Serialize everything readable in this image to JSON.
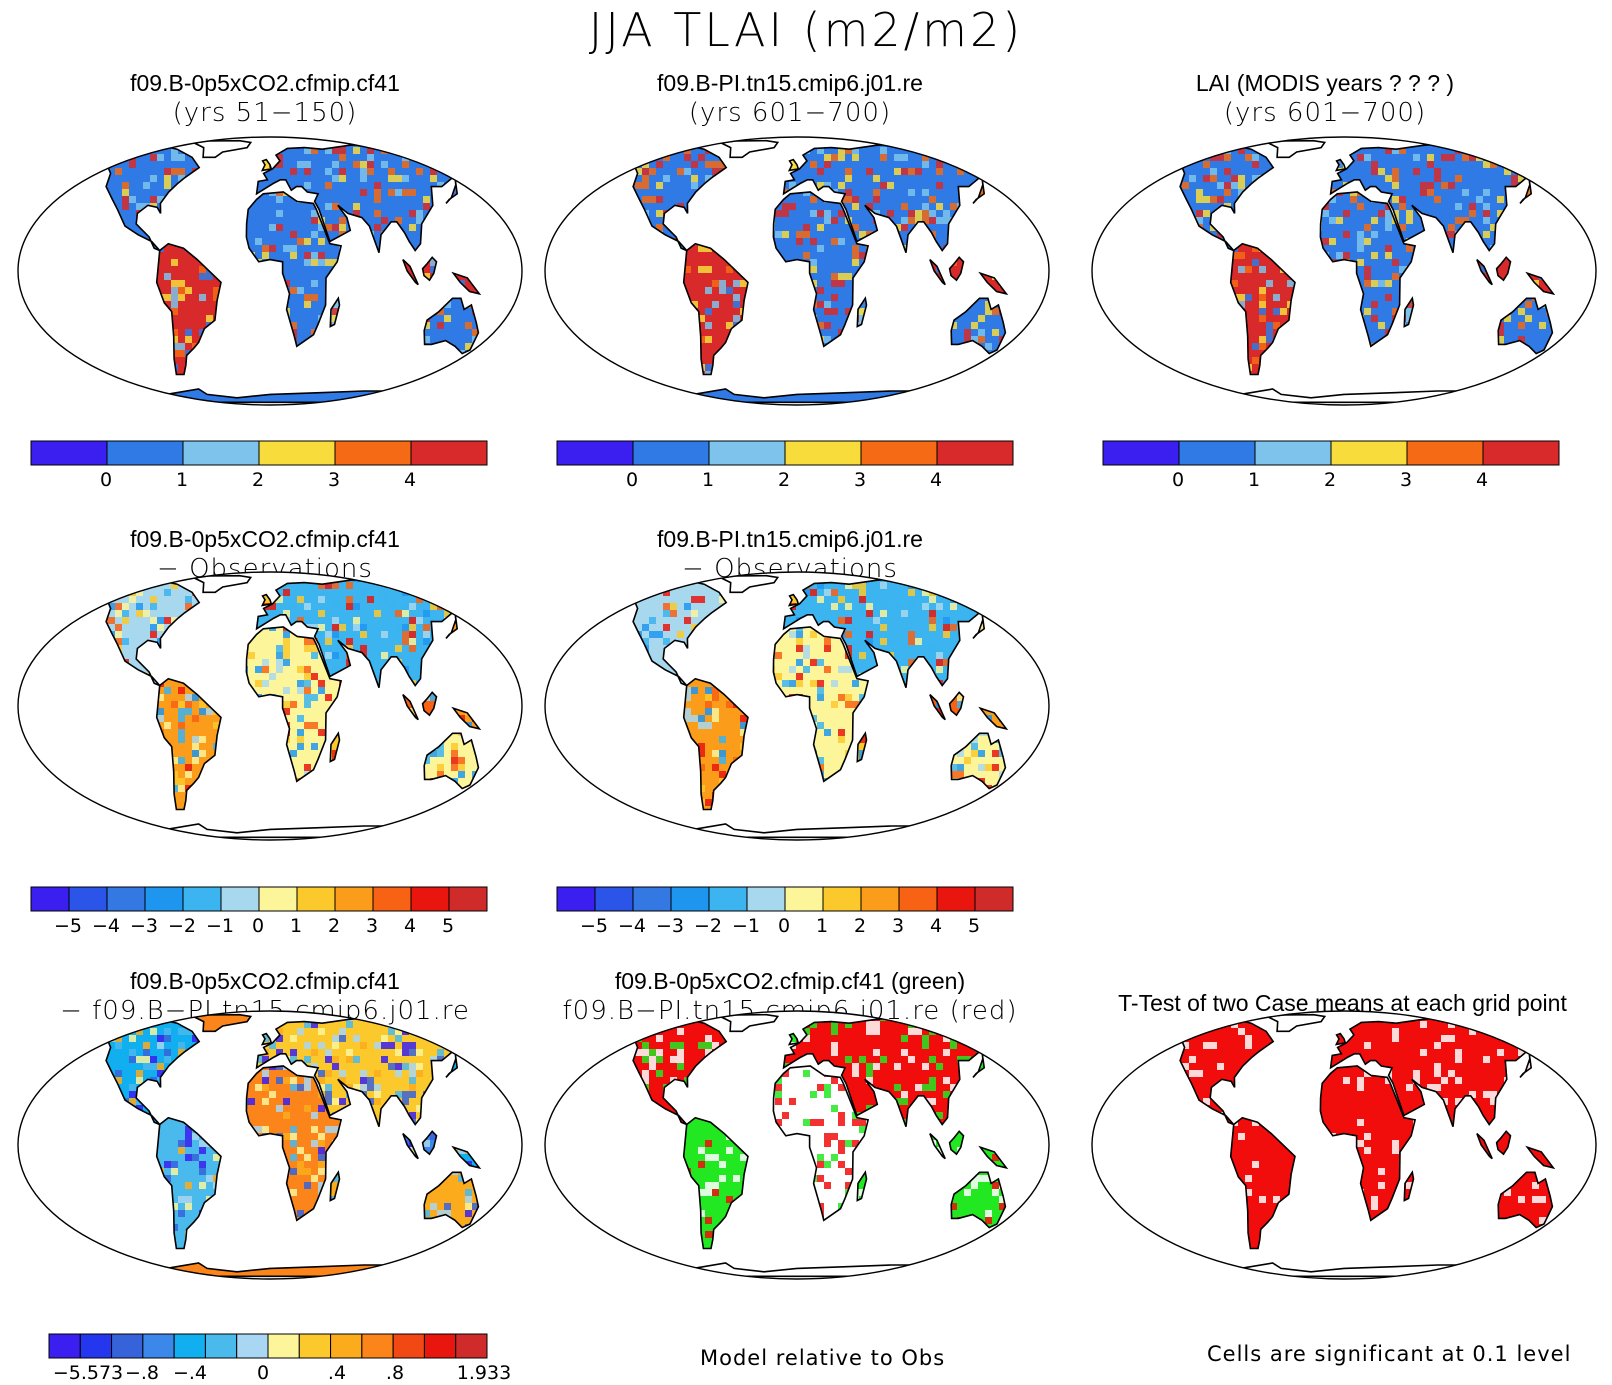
{
  "title": "JJA TLAI (m2/m2)",
  "colors": {
    "fields": [
      "#3b1ff0",
      "#2f7ae5",
      "#7dc3ec",
      "#f8dc3c",
      "#f56a14",
      "#d82a2a"
    ],
    "diff12": [
      "#3b1ff0",
      "#2a55e8",
      "#3478e3",
      "#1e96f0",
      "#3bb4f0",
      "#a8d8ee",
      "#fcf59a",
      "#fcc92d",
      "#fb9d1b",
      "#f86214",
      "#e8160e",
      "#cf2b2b"
    ],
    "diff12b": [
      "#3b1ff0",
      "#2436ee",
      "#3763da",
      "#3b87ea",
      "#11aef0",
      "#4ab9ec",
      "#a9d6f2",
      "#fcf59a",
      "#fcc92d",
      "#fbab1b",
      "#fb841b",
      "#f24814",
      "#e8160e",
      "#cf2b2b"
    ],
    "sig_green": "#22e822",
    "sig_red": "#f20d0d"
  },
  "panels": [
    {
      "id": "p1",
      "line1": "f09.B-0p5xCO2.cfmip.cf41",
      "line2": "(yrs 51−150)",
      "style": "field"
    },
    {
      "id": "p2",
      "line1": "f09.B-PI.tn15.cmip6.j01.re",
      "line2": "(yrs 601−700)",
      "style": "field"
    },
    {
      "id": "p3",
      "line1": "LAI (MODIS years ? ? ? )",
      "line2": "(yrs 601−700)",
      "style": "field-obs"
    },
    {
      "id": "p4",
      "line1": "f09.B-0p5xCO2.cfmip.cf41",
      "line2": "− Observations",
      "style": "diff"
    },
    {
      "id": "p5",
      "line1": "f09.B-PI.tn15.cmip6.j01.re",
      "line2": "− Observations",
      "style": "diff"
    },
    {
      "id": "p6",
      "line1": "f09.B-0p5xCO2.cfmip.cf41",
      "line2": "− f09.B−PI.tn15.cmip6.j01.re",
      "style": "casediff"
    },
    {
      "id": "p7",
      "line1": "f09.B-0p5xCO2.cfmip.cf41 (green)",
      "line2": "f09.B−PI.tn15.cmip6.j01.re (red)",
      "style": "model-obs"
    },
    {
      "id": "p8",
      "line1": "T-Test of two Case means at each grid point",
      "line2": "",
      "style": "ttest"
    }
  ],
  "colorbars": {
    "field": {
      "labels": [
        "0",
        "1",
        "2",
        "3",
        "4"
      ]
    },
    "diff": {
      "labels": [
        "−5",
        "−4",
        "−3",
        "−2",
        "−1",
        "0",
        "1",
        "2",
        "3",
        "4",
        "5"
      ]
    },
    "casediff": {
      "labels": [
        "−5.573",
        "−.8",
        "−.4",
        "0",
        ".4",
        ".8",
        "1.933"
      ]
    }
  },
  "notes": {
    "model_obs": "Model relative to Obs",
    "ttest": "Cells are significant at 0.1 level"
  }
}
